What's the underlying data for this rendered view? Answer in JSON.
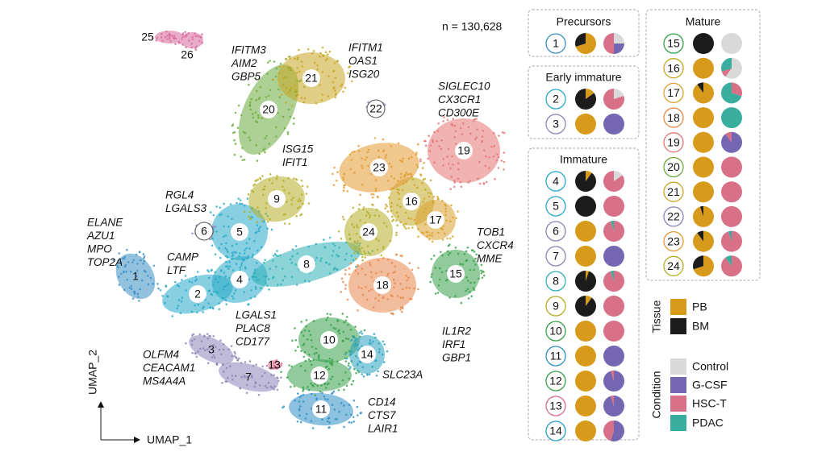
{
  "umap": {
    "x_label": "UMAP_1",
    "y_label": "UMAP_2",
    "n_label": "n = 130,628",
    "clusters": [
      {
        "label": "1",
        "color": "#3b8fc4"
      },
      {
        "label": "2",
        "color": "#27a9c9"
      },
      {
        "label": "3",
        "color": "#8c83b8"
      },
      {
        "label": "4",
        "color": "#27a9c9"
      },
      {
        "label": "5",
        "color": "#27a9c9"
      },
      {
        "label": "6",
        "color": "#8c83b8"
      },
      {
        "label": "7",
        "color": "#8c83b8"
      },
      {
        "label": "8",
        "color": "#2fb0b8"
      },
      {
        "label": "9",
        "color": "#b5ad25"
      },
      {
        "label": "10",
        "color": "#36a048"
      },
      {
        "label": "11",
        "color": "#2e8fc4"
      },
      {
        "label": "12",
        "color": "#36a048"
      },
      {
        "label": "13",
        "color": "#d86a8a"
      },
      {
        "label": "14",
        "color": "#2aa0c0"
      },
      {
        "label": "15",
        "color": "#36a048"
      },
      {
        "label": "16",
        "color": "#c2a824"
      },
      {
        "label": "17",
        "color": "#d9a12e"
      },
      {
        "label": "18",
        "color": "#e8874a"
      },
      {
        "label": "19",
        "color": "#e57373"
      },
      {
        "label": "20",
        "color": "#6aac3c"
      },
      {
        "label": "21",
        "color": "#c9a522"
      },
      {
        "label": "22",
        "color": "#8c83b8"
      },
      {
        "label": "23",
        "color": "#e39a30"
      },
      {
        "label": "24",
        "color": "#b5ad25"
      },
      {
        "label": "25",
        "color": "#d86a9a"
      },
      {
        "label": "26",
        "color": "#d86a9a"
      }
    ],
    "annotations": [
      {
        "lines": [
          "ELANE",
          "AZU1",
          "MPO",
          "TOP2A"
        ],
        "color": "#3b8fc4"
      },
      {
        "lines": [
          "CAMP",
          "LTF"
        ],
        "color": "#27a0c0"
      },
      {
        "lines": [
          "RGL4",
          "LGALS3"
        ],
        "color": "#8c83b8"
      },
      {
        "lines": [
          "IFITM3",
          "AIM2",
          "GBP5"
        ],
        "color": "#6aac3c"
      },
      {
        "lines": [
          "IFITM1",
          "OAS1",
          "ISG20"
        ],
        "color": "#c9a522"
      },
      {
        "lines": [
          "SIGLEC10",
          "CX3CR1",
          "CD300E"
        ],
        "color": "#e06a6a"
      },
      {
        "lines": [
          "ISG15",
          "IFIT1"
        ],
        "color": "#a8a828"
      },
      {
        "lines": [
          "TOB1",
          "CXCR4",
          "MME"
        ],
        "color": "#36a048"
      },
      {
        "lines": [
          "IL1R2",
          "IRF1",
          "GBP1"
        ],
        "color": "#e8874a"
      },
      {
        "lines": [
          "LGALS1",
          "PLAC8",
          "CD177"
        ],
        "color": "#8c83b8"
      },
      {
        "lines": [
          "OLFM4",
          "CEACAM1",
          "MS4A4A"
        ],
        "color": "#8c83b8"
      },
      {
        "lines": [
          "SLC23A"
        ],
        "color": "#2e8fc4"
      },
      {
        "lines": [
          "CD14",
          "CTS7",
          "LAIR1"
        ],
        "color": "#36a048"
      }
    ]
  },
  "groups": [
    {
      "title": "Precursors",
      "clusters": [
        {
          "label": "1",
          "tissue": [
            70,
            30
          ],
          "condition": [
            25,
            25,
            50,
            0
          ]
        }
      ]
    },
    {
      "title": "Early immature",
      "clusters": [
        {
          "label": "2",
          "tissue": [
            15,
            85
          ],
          "condition": [
            20,
            0,
            80,
            0
          ]
        },
        {
          "label": "3",
          "tissue": [
            100,
            0
          ],
          "condition": [
            0,
            100,
            0,
            0
          ]
        }
      ]
    },
    {
      "title": "Immature",
      "clusters": [
        {
          "label": "4",
          "tissue": [
            10,
            90
          ],
          "condition": [
            15,
            0,
            85,
            0
          ]
        },
        {
          "label": "5",
          "tissue": [
            0,
            100
          ],
          "condition": [
            0,
            0,
            100,
            0
          ]
        },
        {
          "label": "6",
          "tissue": [
            100,
            0
          ],
          "condition": [
            0,
            0,
            95,
            5
          ]
        },
        {
          "label": "7",
          "tissue": [
            100,
            0
          ],
          "condition": [
            0,
            100,
            0,
            0
          ]
        },
        {
          "label": "8",
          "tissue": [
            5,
            95
          ],
          "condition": [
            0,
            0,
            95,
            5
          ]
        },
        {
          "label": "9",
          "tissue": [
            10,
            90
          ],
          "condition": [
            0,
            0,
            100,
            0
          ]
        },
        {
          "label": "10",
          "tissue": [
            100,
            0
          ],
          "condition": [
            0,
            0,
            100,
            0
          ]
        },
        {
          "label": "11",
          "tissue": [
            100,
            0
          ],
          "condition": [
            0,
            100,
            0,
            0
          ]
        },
        {
          "label": "12",
          "tissue": [
            100,
            0
          ],
          "condition": [
            0,
            95,
            5,
            0
          ]
        },
        {
          "label": "13",
          "tissue": [
            100,
            0
          ],
          "condition": [
            0,
            95,
            5,
            0
          ]
        },
        {
          "label": "14",
          "tissue": [
            100,
            0
          ],
          "condition": [
            0,
            55,
            45,
            0
          ]
        }
      ]
    },
    {
      "title": "Mature",
      "clusters": [
        {
          "label": "15",
          "tissue": [
            0,
            100
          ],
          "condition": [
            100,
            0,
            0,
            0
          ]
        },
        {
          "label": "16",
          "tissue": [
            100,
            0
          ],
          "condition": [
            60,
            0,
            10,
            30
          ]
        },
        {
          "label": "17",
          "tissue": [
            90,
            10
          ],
          "condition": [
            0,
            0,
            30,
            70
          ]
        },
        {
          "label": "18",
          "tissue": [
            100,
            0
          ],
          "condition": [
            0,
            0,
            0,
            100
          ]
        },
        {
          "label": "19",
          "tissue": [
            100,
            0
          ],
          "condition": [
            0,
            90,
            10,
            0
          ]
        },
        {
          "label": "20",
          "tissue": [
            100,
            0
          ],
          "condition": [
            0,
            0,
            100,
            0
          ]
        },
        {
          "label": "21",
          "tissue": [
            100,
            0
          ],
          "condition": [
            0,
            0,
            100,
            0
          ]
        },
        {
          "label": "22",
          "tissue": [
            95,
            5
          ],
          "condition": [
            0,
            0,
            100,
            0
          ]
        },
        {
          "label": "23",
          "tissue": [
            90,
            10
          ],
          "condition": [
            0,
            0,
            95,
            5
          ]
        },
        {
          "label": "24",
          "tissue": [
            70,
            30
          ],
          "condition": [
            0,
            0,
            90,
            10
          ]
        }
      ]
    }
  ],
  "tissue_legend": {
    "title": "Tissue",
    "items": [
      {
        "name": "PB",
        "color": "#d89a1a"
      },
      {
        "name": "BM",
        "color": "#1c1c1c"
      }
    ]
  },
  "condition_legend": {
    "title": "Condition",
    "items": [
      {
        "name": "Control",
        "color": "#d9d9d9"
      },
      {
        "name": "G-CSF",
        "color": "#7466b0"
      },
      {
        "name": "HSC-T",
        "color": "#d87088"
      },
      {
        "name": "PDAC",
        "color": "#3aae9e"
      }
    ]
  }
}
